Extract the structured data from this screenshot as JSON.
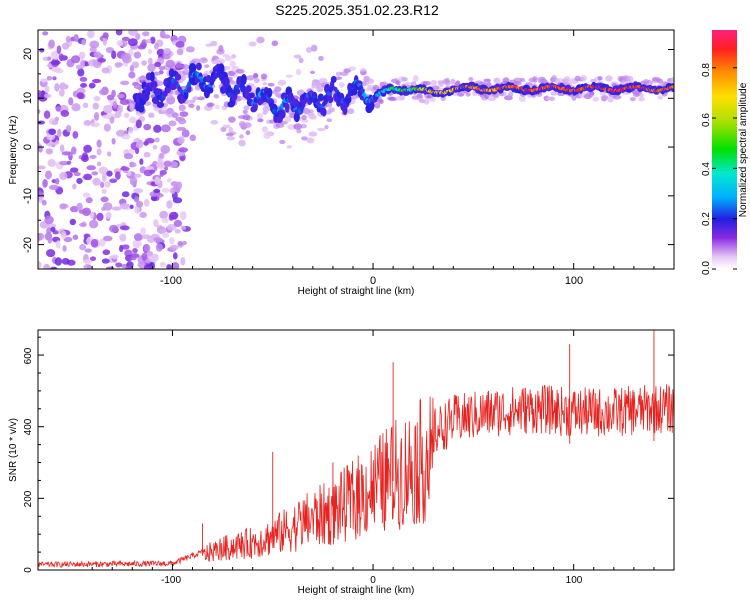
{
  "figure_title": "S225.2025.351.02.23.R12",
  "colors": {
    "signal": "#e8231f",
    "axis": "#000000",
    "background": "#ffffff"
  },
  "chart_data": [
    {
      "type": "heatmap",
      "title": "",
      "xlabel": "Height of straight line (km)",
      "ylabel": "Frequency (Hz)",
      "xlim": [
        -167,
        150
      ],
      "ylim": [
        -25,
        24
      ],
      "x_tick_labels": [
        "-100",
        "0",
        "100"
      ],
      "y_tick_labels": [
        "20",
        "10",
        "0",
        "-10",
        "-20"
      ],
      "colorbar": {
        "label": "Normalized spectral amplitude",
        "range": [
          0,
          0.95
        ],
        "tick_labels": [
          "0.0",
          "0.2",
          "0.4",
          "0.6",
          "0.8"
        ],
        "colormap": "rainbow"
      },
      "features": {
        "noise_region_x": [
          -167,
          -93
        ],
        "ridge": {
          "x": [
            -115,
            -100,
            -85,
            -75,
            -65,
            -55,
            -45,
            -35,
            -25,
            -15,
            -5,
            0,
            10,
            20,
            30,
            40,
            60,
            80,
            100,
            120,
            150
          ],
          "frequency": [
            11,
            12,
            14,
            13,
            11,
            10,
            8,
            9,
            10,
            11,
            12,
            10,
            12,
            12,
            11,
            12,
            12,
            12,
            12,
            12,
            12
          ],
          "peak_amplitude": [
            0.2,
            0.25,
            0.3,
            0.25,
            0.25,
            0.3,
            0.3,
            0.25,
            0.25,
            0.25,
            0.3,
            0.3,
            0.5,
            0.55,
            0.75,
            0.8,
            0.85,
            0.9,
            0.9,
            0.95,
            0.85
          ]
        }
      }
    },
    {
      "type": "line",
      "title": "",
      "xlabel": "Height of straight line (km)",
      "ylabel": "SNR (10 * v/v)",
      "xlim": [
        -167,
        150
      ],
      "ylim": [
        0,
        670
      ],
      "x_tick_labels": [
        "-100",
        "0",
        "100"
      ],
      "y_tick_labels": [
        "0",
        "200",
        "400",
        "600"
      ],
      "series": [
        {
          "name": "SNR",
          "x_range": [
            -167,
            150
          ],
          "trend": {
            "x": [
              -167,
              -100,
              -85,
              -75,
              -60,
              -50,
              -40,
              -30,
              -20,
              -10,
              0,
              10,
              20,
              30,
              40,
              60,
              80,
              100,
              120,
              140,
              150
            ],
            "y": [
              15,
              18,
              50,
              70,
              90,
              110,
              140,
              170,
              190,
              230,
              270,
              310,
              340,
              380,
              420,
              440,
              450,
              440,
              440,
              450,
              450
            ]
          },
          "noticeable_peaks": [
            {
              "x": -85,
              "y": 130
            },
            {
              "x": -50,
              "y": 330
            },
            {
              "x": -20,
              "y": 300
            },
            {
              "x": 10,
              "y": 580
            },
            {
              "x": 98,
              "y": 630
            },
            {
              "x": 140,
              "y": 670
            }
          ]
        }
      ]
    }
  ]
}
